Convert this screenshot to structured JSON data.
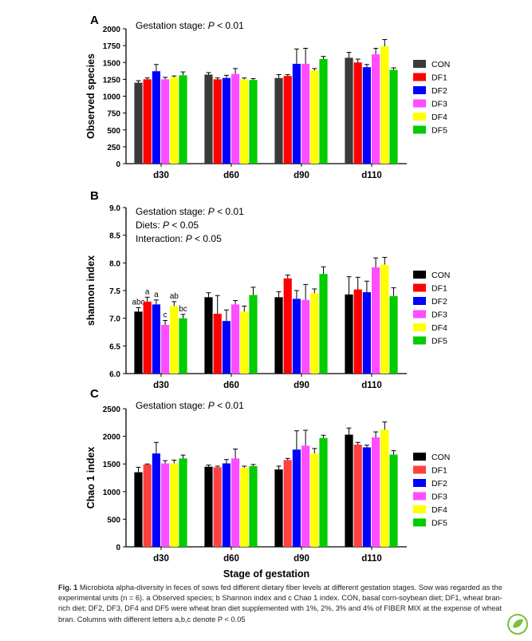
{
  "chart_data": [
    {
      "panel": "A",
      "type": "bar",
      "categories": [
        "d30",
        "d60",
        "d90",
        "d110"
      ],
      "ylabel": "Observed species",
      "ylim": [
        0,
        2000
      ],
      "yticks": [
        0,
        250,
        500,
        750,
        1000,
        1250,
        1500,
        1750,
        2000
      ],
      "annotations": [
        "Gestation stage: P < 0.01"
      ],
      "legend_position": "right",
      "series": [
        {
          "name": "CON",
          "color": "#3a3a3a",
          "values": [
            1200,
            1320,
            1270,
            1570
          ],
          "errors": [
            30,
            30,
            50,
            80
          ]
        },
        {
          "name": "DF1",
          "color": "#ff0000",
          "values": [
            1250,
            1250,
            1300,
            1500
          ],
          "errors": [
            20,
            20,
            20,
            50
          ]
        },
        {
          "name": "DF2",
          "color": "#0000ff",
          "values": [
            1370,
            1270,
            1480,
            1430
          ],
          "errors": [
            100,
            40,
            220,
            40
          ]
        },
        {
          "name": "DF3",
          "color": "#ff4dff",
          "values": [
            1250,
            1330,
            1480,
            1620
          ],
          "errors": [
            30,
            80,
            230,
            90
          ]
        },
        {
          "name": "DF4",
          "color": "#ffff00",
          "values": [
            1280,
            1250,
            1380,
            1740
          ],
          "errors": [
            20,
            20,
            30,
            100
          ]
        },
        {
          "name": "DF5",
          "color": "#00cc00",
          "values": [
            1310,
            1240,
            1550,
            1390
          ],
          "errors": [
            50,
            20,
            40,
            30
          ]
        }
      ]
    },
    {
      "panel": "B",
      "type": "bar",
      "categories": [
        "d30",
        "d60",
        "d90",
        "d110"
      ],
      "ylabel": "shannon index",
      "ylim": [
        6.0,
        9.0
      ],
      "yticks": [
        6.0,
        6.5,
        7.0,
        7.5,
        8.0,
        8.5,
        9.0
      ],
      "annotations": [
        "Gestation stage: P < 0.01",
        "Diets: P < 0.05",
        "Interaction: P < 0.05"
      ],
      "legend_position": "right",
      "bar_labels_d30": [
        "abc",
        "a",
        "a",
        "c",
        "ab",
        "bc"
      ],
      "series": [
        {
          "name": "CON",
          "color": "#000000",
          "values": [
            7.12,
            7.38,
            7.38,
            7.43
          ],
          "errors": [
            0.07,
            0.08,
            0.1,
            0.32
          ]
        },
        {
          "name": "DF1",
          "color": "#ff0000",
          "values": [
            7.3,
            7.08,
            7.72,
            7.52
          ],
          "errors": [
            0.08,
            0.33,
            0.06,
            0.22
          ]
        },
        {
          "name": "DF2",
          "color": "#0000ff",
          "values": [
            7.25,
            6.95,
            7.35,
            7.47
          ],
          "errors": [
            0.08,
            0.2,
            0.15,
            0.2
          ]
        },
        {
          "name": "DF3",
          "color": "#ff4dff",
          "values": [
            6.88,
            7.25,
            7.33,
            7.92
          ],
          "errors": [
            0.08,
            0.07,
            0.28,
            0.17
          ]
        },
        {
          "name": "DF4",
          "color": "#ffff00",
          "values": [
            7.22,
            7.12,
            7.45,
            7.97
          ],
          "errors": [
            0.08,
            0.1,
            0.08,
            0.13
          ]
        },
        {
          "name": "DF5",
          "color": "#00cc00",
          "values": [
            7.0,
            7.42,
            7.8,
            7.4
          ],
          "errors": [
            0.07,
            0.14,
            0.13,
            0.15
          ]
        }
      ]
    },
    {
      "panel": "C",
      "type": "bar",
      "categories": [
        "d30",
        "d60",
        "d90",
        "d110"
      ],
      "ylabel": "Chao 1 index",
      "xlabel": "Stage of gestation",
      "ylim": [
        0,
        2500
      ],
      "yticks": [
        0,
        500,
        1000,
        1500,
        2000,
        2500
      ],
      "annotations": [
        "Gestation stage: P < 0.01"
      ],
      "legend_position": "right",
      "series": [
        {
          "name": "CON",
          "color": "#000000",
          "values": [
            1350,
            1450,
            1400,
            2030
          ],
          "errors": [
            90,
            30,
            60,
            120
          ]
        },
        {
          "name": "DF1",
          "color": "#ff4040",
          "values": [
            1490,
            1440,
            1570,
            1850
          ],
          "errors": [
            10,
            20,
            30,
            40
          ]
        },
        {
          "name": "DF2",
          "color": "#0000ff",
          "values": [
            1690,
            1510,
            1760,
            1800
          ],
          "errors": [
            200,
            70,
            340,
            40
          ]
        },
        {
          "name": "DF3",
          "color": "#ff4dff",
          "values": [
            1510,
            1600,
            1830,
            1980
          ],
          "errors": [
            50,
            170,
            280,
            100
          ]
        },
        {
          "name": "DF4",
          "color": "#ffff00",
          "values": [
            1510,
            1430,
            1690,
            2120
          ],
          "errors": [
            60,
            30,
            90,
            140
          ]
        },
        {
          "name": "DF5",
          "color": "#00cc00",
          "values": [
            1600,
            1460,
            1970,
            1670
          ],
          "errors": [
            60,
            30,
            50,
            70
          ]
        }
      ]
    }
  ],
  "caption": {
    "label": "Fig. 1",
    "text": "Microbiota alpha-diversity in feces of sows fed different dietary fiber levels at different gestation stages. Sow was regarded as the experimental units (n = 6). a Observed species; b Shannon index and c Chao 1 index. CON, basal corn-soybean diet; DF1, wheat bran-rich diet; DF2, DF3, DF4 and DF5 were wheat bran diet supplemented with 1%, 2%, 3% and 4% of FIBER MIX at the expense of wheat bran. Columns with different letters a,b,c denote P < 0.05"
  },
  "logo_icon": "leaf-logo-icon"
}
